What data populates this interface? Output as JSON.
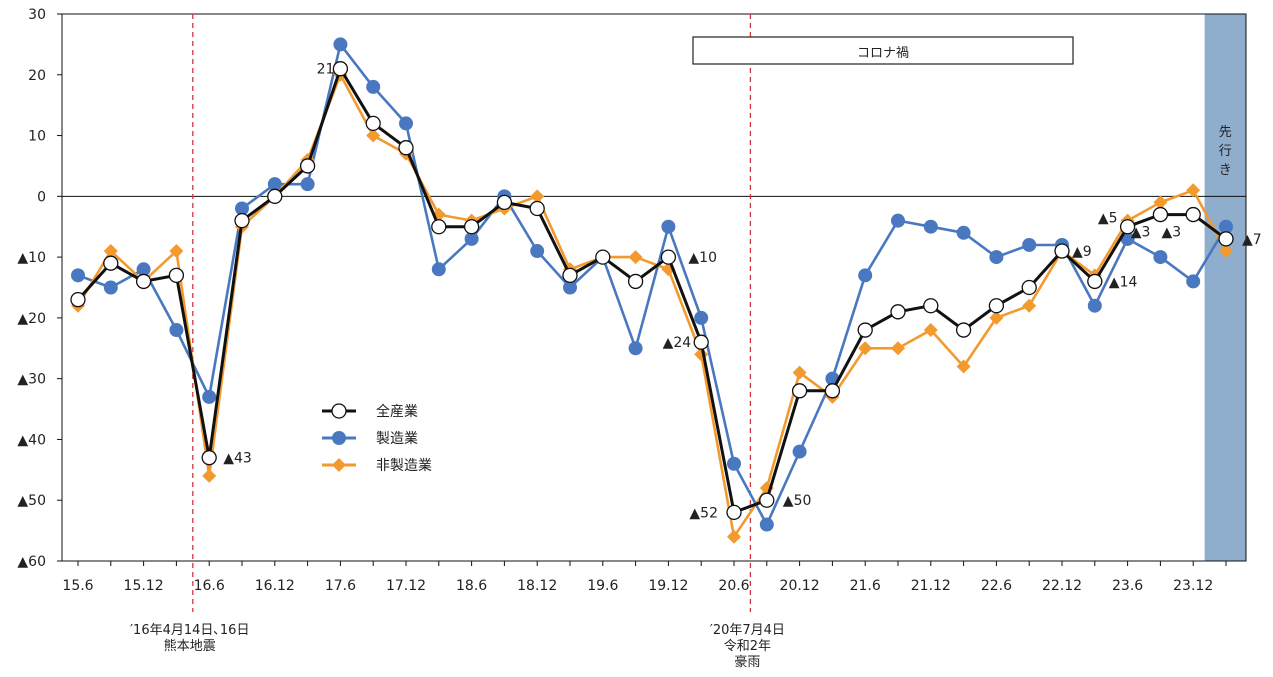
{
  "chart_data": {
    "type": "line",
    "title": "",
    "xlabel": "",
    "ylabel": "",
    "ylim": [
      -60,
      30
    ],
    "yticks": [
      30,
      20,
      10,
      0,
      -10,
      -20,
      -30,
      -40,
      -50,
      -60
    ],
    "ytick_labels": [
      "30",
      "20",
      "10",
      "0",
      "▲10",
      "▲20",
      "▲30",
      "▲40",
      "▲50",
      "▲60"
    ],
    "x": [
      "15.6",
      "15.9",
      "15.12",
      "16.3",
      "16.6",
      "16.9",
      "16.12",
      "17.3",
      "17.6",
      "17.9",
      "17.12",
      "18.3",
      "18.6",
      "18.9",
      "18.12",
      "19.3",
      "19.6",
      "19.9",
      "19.12",
      "20.3",
      "20.6",
      "20.9",
      "20.12",
      "21.3",
      "21.6",
      "21.9",
      "21.12",
      "22.3",
      "22.6",
      "22.9",
      "22.12",
      "23.3",
      "23.6",
      "23.9",
      "23.12",
      "先行き"
    ],
    "xtick_labels": [
      "15.6",
      "15.12",
      "16.6",
      "16.12",
      "17.6",
      "17.12",
      "18.6",
      "18.12",
      "19.6",
      "19.12",
      "20.6",
      "20.12",
      "21.6",
      "21.12",
      "22.6",
      "22.12",
      "23.6",
      "23.12"
    ],
    "series": [
      {
        "name": "全産業",
        "color": "#111111",
        "marker": "circle-open",
        "values": [
          -17,
          -11,
          -14,
          -13,
          -43,
          -4,
          0,
          5,
          21,
          12,
          8,
          -5,
          -5,
          -1,
          -2,
          -13,
          -10,
          -14,
          -10,
          -24,
          -52,
          -50,
          -32,
          -32,
          -22,
          -19,
          -18,
          -22,
          -18,
          -15,
          -9,
          -14,
          -5,
          -3,
          -3,
          -7
        ]
      },
      {
        "name": "製造業",
        "color": "#4a78c0",
        "marker": "circle",
        "values": [
          -13,
          -15,
          -12,
          -22,
          -33,
          -2,
          2,
          2,
          25,
          18,
          12,
          -12,
          -7,
          0,
          -9,
          -15,
          -10,
          -25,
          -5,
          -20,
          -44,
          -54,
          -42,
          -30,
          -13,
          -4,
          -5,
          -6,
          -10,
          -8,
          -8,
          -18,
          -7,
          -10,
          -14,
          -5
        ]
      },
      {
        "name": "非製造業",
        "color": "#f39a2e",
        "marker": "diamond",
        "values": [
          -18,
          -9,
          -14,
          -9,
          -46,
          -5,
          0,
          6,
          20,
          10,
          7,
          -3,
          -4,
          -2,
          0,
          -12,
          -10,
          -10,
          -12,
          -26,
          -56,
          -48,
          -29,
          -33,
          -25,
          -25,
          -22,
          -28,
          -20,
          -18,
          -9,
          -13,
          -4,
          -1,
          1,
          -9
        ]
      }
    ],
    "legend": {
      "position": "center-left",
      "entries": [
        "全産業",
        "製造業",
        "非製造業"
      ]
    },
    "data_labels": [
      {
        "index": 4,
        "text": "▲43"
      },
      {
        "index": 8,
        "text": "21"
      },
      {
        "index": 18,
        "text": "▲10"
      },
      {
        "index": 19,
        "text": "▲24"
      },
      {
        "index": 20,
        "text": "▲52"
      },
      {
        "index": 21,
        "text": "▲50"
      },
      {
        "index": 30,
        "text": "▲9"
      },
      {
        "index": 31,
        "text": "▲14"
      },
      {
        "index": 32,
        "text": "▲5"
      },
      {
        "index": 33,
        "text": "▲3"
      },
      {
        "index": 34,
        "text": "▲3"
      },
      {
        "index": 35,
        "text": "▲7"
      }
    ],
    "annotations": {
      "covid_label": "コロナ禍",
      "forecast_label": "先行き",
      "events": [
        {
          "after_index": 3,
          "lines": [
            "′16年4月14日､16日",
            "熊本地震"
          ]
        },
        {
          "after_index": 20,
          "lines": [
            "′20年7月4日",
            "令和2年",
            "豪雨"
          ]
        }
      ]
    },
    "grid": false,
    "zero_line": true,
    "colors": {
      "forecast_band": "#8fadcc",
      "event_line": "#d0363c",
      "axis": "#111111"
    }
  }
}
